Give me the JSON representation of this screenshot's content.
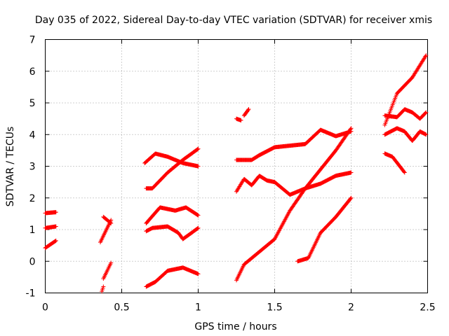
{
  "chart_data": {
    "type": "scatter",
    "title": "Day 035 of 2022, Sidereal Day-to-day VTEC variation (SDTVAR) for receiver xmis",
    "xlabel": "GPS time / hours",
    "ylabel": "SDTVAR / TECUs",
    "xlim": [
      0,
      2.5
    ],
    "ylim": [
      -1,
      7
    ],
    "xticks": [
      0,
      0.5,
      1,
      1.5,
      2,
      2.5
    ],
    "xtick_labels": [
      "0",
      "0.5",
      "1",
      "1.5",
      "2",
      "2.5"
    ],
    "yticks": [
      -1,
      0,
      1,
      2,
      3,
      4,
      5,
      6,
      7
    ],
    "ytick_labels": [
      "-1",
      "0",
      "1",
      "2",
      "3",
      "4",
      "5",
      "6",
      "7"
    ],
    "grid": true,
    "marker": "+",
    "color": "#ff0000",
    "segments": [
      {
        "x": [
          0,
          0.07
        ],
        "y": [
          1.52,
          1.55
        ]
      },
      {
        "x": [
          0,
          0.07
        ],
        "y": [
          1.05,
          1.1
        ]
      },
      {
        "x": [
          0,
          0.07
        ],
        "y": [
          0.42,
          0.65
        ]
      },
      {
        "x": [
          0.37,
          0.38
        ],
        "y": [
          -0.95,
          -0.8
        ]
      },
      {
        "x": [
          0.38,
          0.43
        ],
        "y": [
          -0.55,
          -0.05
        ]
      },
      {
        "x": [
          0.36,
          0.43
        ],
        "y": [
          0.6,
          1.3
        ]
      },
      {
        "x": [
          0.38,
          0.43
        ],
        "y": [
          1.4,
          1.2
        ]
      },
      {
        "x": [
          0.66,
          0.75,
          0.85,
          0.92,
          1.0
        ],
        "y": [
          1.2,
          1.7,
          1.6,
          1.7,
          1.45
        ]
      },
      {
        "x": [
          0.66,
          0.7,
          0.8,
          0.87,
          0.9,
          1.0
        ],
        "y": [
          0.95,
          1.05,
          1.1,
          0.9,
          0.7,
          1.05
        ]
      },
      {
        "x": [
          0.66,
          0.72,
          0.8,
          0.9,
          1.0
        ],
        "y": [
          -0.8,
          -0.65,
          -0.3,
          -0.2,
          -0.4
        ]
      },
      {
        "x": [
          0.65,
          0.72,
          0.8,
          0.9,
          1.0
        ],
        "y": [
          3.1,
          3.4,
          3.3,
          3.1,
          3.0
        ]
      },
      {
        "x": [
          0.66,
          0.7,
          0.8,
          0.9,
          1.0
        ],
        "y": [
          2.3,
          2.3,
          2.8,
          3.2,
          3.55
        ]
      },
      {
        "x": [
          1.25,
          1.28
        ],
        "y": [
          4.5,
          4.45
        ]
      },
      {
        "x": [
          1.3,
          1.33
        ],
        "y": [
          4.6,
          4.8
        ]
      },
      {
        "x": [
          1.25,
          1.3,
          1.35,
          1.4,
          1.5,
          1.6,
          1.7,
          1.8,
          1.9,
          2.0
        ],
        "y": [
          3.2,
          3.2,
          3.2,
          3.35,
          3.6,
          3.65,
          3.7,
          4.15,
          3.95,
          4.1
        ]
      },
      {
        "x": [
          1.25,
          1.3,
          1.35,
          1.4,
          1.45,
          1.5,
          1.55,
          1.6,
          1.7,
          1.8,
          1.9,
          2.0
        ],
        "y": [
          2.2,
          2.6,
          2.4,
          2.7,
          2.55,
          2.5,
          2.3,
          2.1,
          2.3,
          2.45,
          2.7,
          2.8
        ]
      },
      {
        "x": [
          1.25,
          1.3,
          1.35,
          1.4,
          1.5,
          1.6,
          1.7,
          1.8,
          1.9,
          2.0
        ],
        "y": [
          -0.6,
          -0.1,
          0.1,
          0.3,
          0.7,
          1.6,
          2.3,
          2.9,
          3.5,
          4.2
        ]
      },
      {
        "x": [
          1.65,
          1.72,
          1.8,
          1.9,
          2.0
        ],
        "y": [
          0.0,
          0.1,
          0.9,
          1.4,
          2.0
        ]
      },
      {
        "x": [
          2.22,
          2.3,
          2.4,
          2.49
        ],
        "y": [
          4.3,
          5.3,
          5.8,
          6.5
        ]
      },
      {
        "x": [
          2.22,
          2.3,
          2.35,
          2.4,
          2.45,
          2.49
        ],
        "y": [
          4.6,
          4.55,
          4.8,
          4.7,
          4.5,
          4.7
        ]
      },
      {
        "x": [
          2.22,
          2.3,
          2.35,
          2.4,
          2.45,
          2.49
        ],
        "y": [
          4.0,
          4.2,
          4.1,
          3.8,
          4.1,
          4.0
        ]
      },
      {
        "x": [
          2.22,
          2.27,
          2.35
        ],
        "y": [
          3.4,
          3.3,
          2.8
        ]
      }
    ]
  }
}
